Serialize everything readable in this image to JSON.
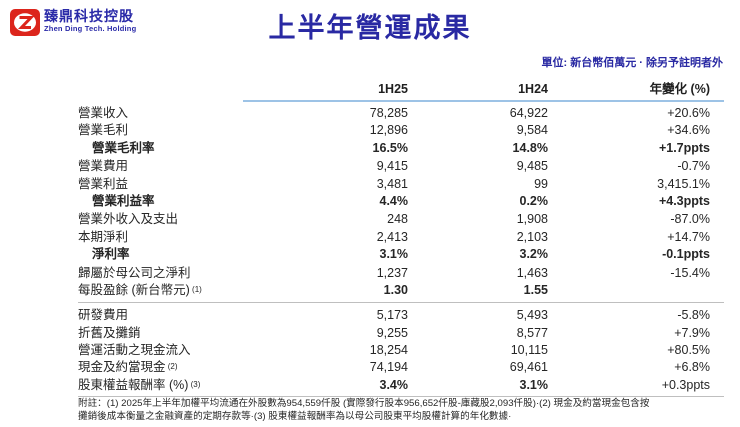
{
  "logo": {
    "company_cn": "臻鼎科技控股",
    "company_en": "Zhen Ding Tech. Holding",
    "mark": "ZD"
  },
  "title": "上半年營運成果",
  "unit_note": "單位: 新台幣佰萬元 · 除另予註明者外",
  "colors": {
    "title_blue": "#2929a3",
    "logo_blue": "#2a2aa8",
    "logo_red": "#dc251c",
    "header_rule_blue": "#9dc3e6",
    "divider_gray": "#bfbfbf"
  },
  "table": {
    "columns": [
      "1H25",
      "1H24",
      "年變化 (%)"
    ],
    "rows": [
      {
        "label": "營業收入",
        "v1": "78,285",
        "v2": "64,922",
        "chg": "+20.6%",
        "style": "normal"
      },
      {
        "label": "營業毛利",
        "v1": "12,896",
        "v2": "9,584",
        "chg": "+34.6%",
        "style": "normal"
      },
      {
        "label": "營業毛利率",
        "v1": "16.5%",
        "v2": "14.8%",
        "chg": "+1.7ppts",
        "style": "ratio"
      },
      {
        "label": "營業費用",
        "v1": "9,415",
        "v2": "9,485",
        "chg": "-0.7%",
        "style": "normal"
      },
      {
        "label": "營業利益",
        "v1": "3,481",
        "v2": "99",
        "chg": "3,415.1%",
        "style": "normal"
      },
      {
        "label": "營業利益率",
        "v1": "4.4%",
        "v2": "0.2%",
        "chg": "+4.3ppts",
        "style": "ratio"
      },
      {
        "label": "營業外收入及支出",
        "v1": "248",
        "v2": "1,908",
        "chg": "-87.0%",
        "style": "normal"
      },
      {
        "label": "本期淨利",
        "v1": "2,413",
        "v2": "2,103",
        "chg": "+14.7%",
        "style": "normal"
      },
      {
        "label": "淨利率",
        "v1": "3.1%",
        "v2": "3.2%",
        "chg": "-0.1ppts",
        "style": "ratio"
      },
      {
        "label": "歸屬於母公司之淨利",
        "v1": "1,237",
        "v2": "1,463",
        "chg": "-15.4%",
        "style": "normal"
      },
      {
        "label": "每股盈餘 (新台幣元)",
        "label_sup": "(1)",
        "v1": "1.30",
        "v2": "1.55",
        "chg": "",
        "style": "eps"
      },
      {
        "divider": true
      },
      {
        "label": "研發費用",
        "v1": "5,173",
        "v2": "5,493",
        "chg": "-5.8%",
        "style": "normal"
      },
      {
        "label": "折舊及攤銷",
        "v1": "9,255",
        "v2": "8,577",
        "chg": "+7.9%",
        "style": "normal"
      },
      {
        "label": "營運活動之現金流入",
        "v1": "18,254",
        "v2": "10,115",
        "chg": "+80.5%",
        "style": "normal"
      },
      {
        "label": "現金及約當現金",
        "label_sup": "(2)",
        "v1": "74,194",
        "v2": "69,461",
        "chg": "+6.8%",
        "style": "normal"
      },
      {
        "label": "股東權益報酬率 (%)",
        "label_sup": "(3)",
        "v1": "3.4%",
        "v2": "3.1%",
        "chg": "+0.3ppts",
        "style": "roe"
      }
    ]
  },
  "footnote": {
    "line1": "附註：(1) 2025年上半年加權平均流通在外股數為954,559仟股 (實際發行股本956,652仟股-庫藏股2,093仟股)·(2) 現金及約當現金包含按",
    "line2": "攤銷後成本衡量之金融資產的定期存款等·(3) 股東權益報酬率為以母公司股東平均股權計算的年化數據·"
  }
}
